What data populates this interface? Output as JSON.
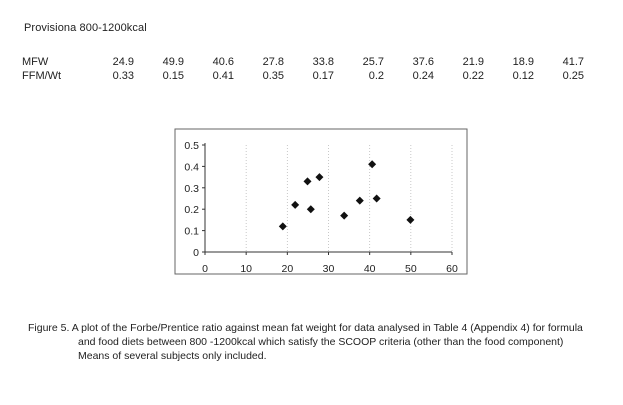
{
  "heading": "Provisiona  800-1200kcal",
  "table": {
    "rows": [
      {
        "label": "MFW",
        "values": [
          "24.9",
          "49.9",
          "40.6",
          "27.8",
          "33.8",
          "25.7",
          "37.6",
          "21.9",
          "18.9",
          "41.7"
        ]
      },
      {
        "label": "FFM/Wt",
        "values": [
          "0.33",
          "0.15",
          "0.41",
          "0.35",
          "0.17",
          "0.2",
          "0.24",
          "0.22",
          "0.12",
          "0.25"
        ]
      }
    ]
  },
  "chart_data": {
    "type": "scatter",
    "title": "",
    "xlabel": "",
    "ylabel": "",
    "xlim": [
      0,
      60
    ],
    "ylim": [
      0,
      0.5
    ],
    "x_ticks": [
      "0",
      "10",
      "20",
      "30",
      "40",
      "50",
      "60"
    ],
    "y_ticks": [
      "0",
      "0.1",
      "0.2",
      "0.3",
      "0.4",
      "0.5"
    ],
    "grid": "dotted vertical gridlines",
    "legend": "none",
    "marker_color": "#111111",
    "points": [
      {
        "x": 24.9,
        "y": 0.33
      },
      {
        "x": 49.9,
        "y": 0.15
      },
      {
        "x": 40.6,
        "y": 0.41
      },
      {
        "x": 27.8,
        "y": 0.35
      },
      {
        "x": 33.8,
        "y": 0.17
      },
      {
        "x": 25.7,
        "y": 0.2
      },
      {
        "x": 37.6,
        "y": 0.24
      },
      {
        "x": 21.9,
        "y": 0.22
      },
      {
        "x": 18.9,
        "y": 0.12
      },
      {
        "x": 41.7,
        "y": 0.25
      }
    ]
  },
  "caption": {
    "line1": "Figure 5. A plot of the Forbe/Prentice ratio against mean fat weight for data analysed in Table 4 (Appendix 4) for formula",
    "line2": "and food diets between 800 -1200kcal which satisfy the SCOOP criteria (other than the food component)",
    "line3": "Means of several subjects only included."
  }
}
